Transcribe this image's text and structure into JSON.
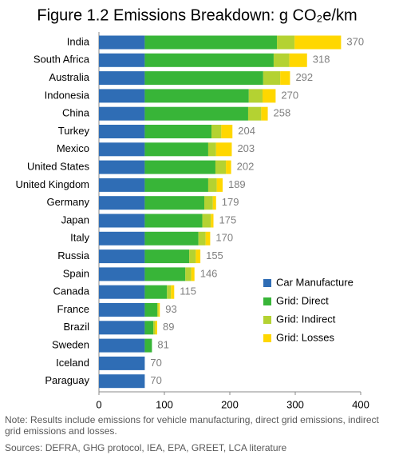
{
  "chart_data": {
    "type": "stacked-barh",
    "title": "Figure 1.2  Emissions Breakdown: g CO₂e/km",
    "categories": [
      "India",
      "South Africa",
      "Australia",
      "Indonesia",
      "China",
      "Turkey",
      "Mexico",
      "United States",
      "United Kingdom",
      "Germany",
      "Japan",
      "Italy",
      "Russia",
      "Spain",
      "Canada",
      "France",
      "Brazil",
      "Sweden",
      "Iceland",
      "Paraguay"
    ],
    "series": [
      {
        "name": "Car Manufacture",
        "color": "#2f6db5",
        "values": [
          70,
          70,
          70,
          70,
          70,
          70,
          70,
          70,
          70,
          70,
          70,
          70,
          70,
          70,
          70,
          70,
          70,
          70,
          70,
          70
        ]
      },
      {
        "name": "Grid: Direct",
        "color": "#38b538",
        "values": [
          202,
          197,
          181,
          159,
          158,
          102,
          97,
          108,
          97,
          91,
          88,
          82,
          68,
          62,
          34,
          19,
          13,
          11,
          0,
          0
        ]
      },
      {
        "name": "Grid: Indirect",
        "color": "#b4d232",
        "values": [
          27,
          24,
          26,
          21,
          20,
          15,
          12,
          16,
          13,
          13,
          13,
          11,
          10,
          9,
          6,
          2,
          3,
          0,
          0,
          0
        ]
      },
      {
        "name": "Grid: Losses",
        "color": "#ffd700",
        "values": [
          71,
          27,
          15,
          20,
          10,
          17,
          24,
          8,
          9,
          5,
          4,
          7,
          7,
          5,
          5,
          2,
          3,
          0,
          0,
          0
        ]
      }
    ],
    "totals": [
      370,
      318,
      292,
      270,
      258,
      204,
      203,
      202,
      189,
      179,
      175,
      170,
      155,
      146,
      115,
      93,
      89,
      81,
      70,
      70
    ],
    "xlim": [
      0,
      400
    ],
    "xticks": [
      0,
      100,
      200,
      300,
      400
    ],
    "legend": "lower right",
    "note": "Note:  Results include emissions for vehicle manufacturing, direct grid emissions, indirect grid emissions and losses.",
    "sources": "Sources: DEFRA, GHG protocol, IEA, EPA, GREET, LCA literature"
  }
}
